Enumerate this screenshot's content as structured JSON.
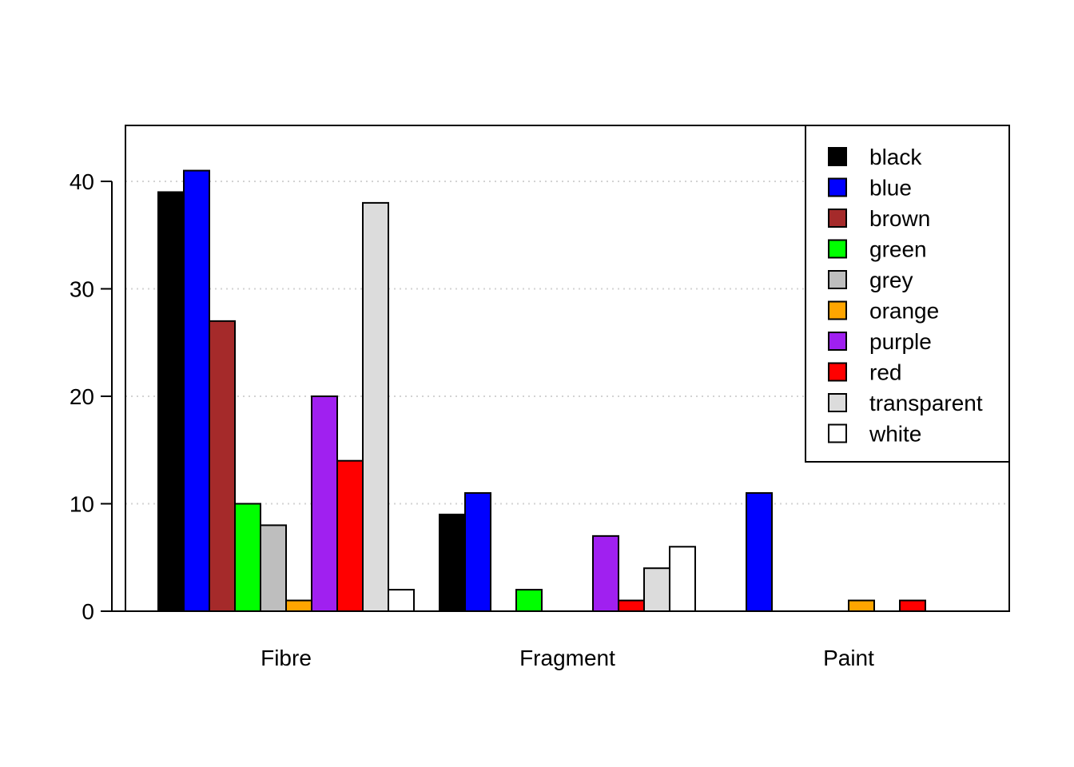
{
  "chart_data": {
    "type": "bar",
    "categories": [
      "Fibre",
      "Fragment",
      "Paint"
    ],
    "series": [
      {
        "name": "black",
        "color": "#000000",
        "values": [
          39,
          9,
          0
        ]
      },
      {
        "name": "blue",
        "color": "#0000ff",
        "values": [
          41,
          11,
          11
        ]
      },
      {
        "name": "brown",
        "color": "#a52a2a",
        "values": [
          27,
          0,
          0
        ]
      },
      {
        "name": "green",
        "color": "#00ff00",
        "values": [
          10,
          2,
          0
        ]
      },
      {
        "name": "grey",
        "color": "#bebebe",
        "values": [
          8,
          0,
          0
        ]
      },
      {
        "name": "orange",
        "color": "#ffa500",
        "values": [
          1,
          0,
          1
        ]
      },
      {
        "name": "purple",
        "color": "#a020f0",
        "values": [
          20,
          7,
          0
        ]
      },
      {
        "name": "red",
        "color": "#ff0000",
        "values": [
          14,
          1,
          1
        ]
      },
      {
        "name": "transparent",
        "color": "#dcdcdc",
        "values": [
          38,
          4,
          0
        ]
      },
      {
        "name": "white",
        "color": "#ffffff",
        "values": [
          2,
          6,
          0
        ]
      }
    ],
    "yticks": [
      "0",
      "10",
      "20",
      "30",
      "40"
    ],
    "ylim": [
      0,
      45
    ],
    "grid": "horizontal dotted",
    "legend_position": "top-right"
  }
}
